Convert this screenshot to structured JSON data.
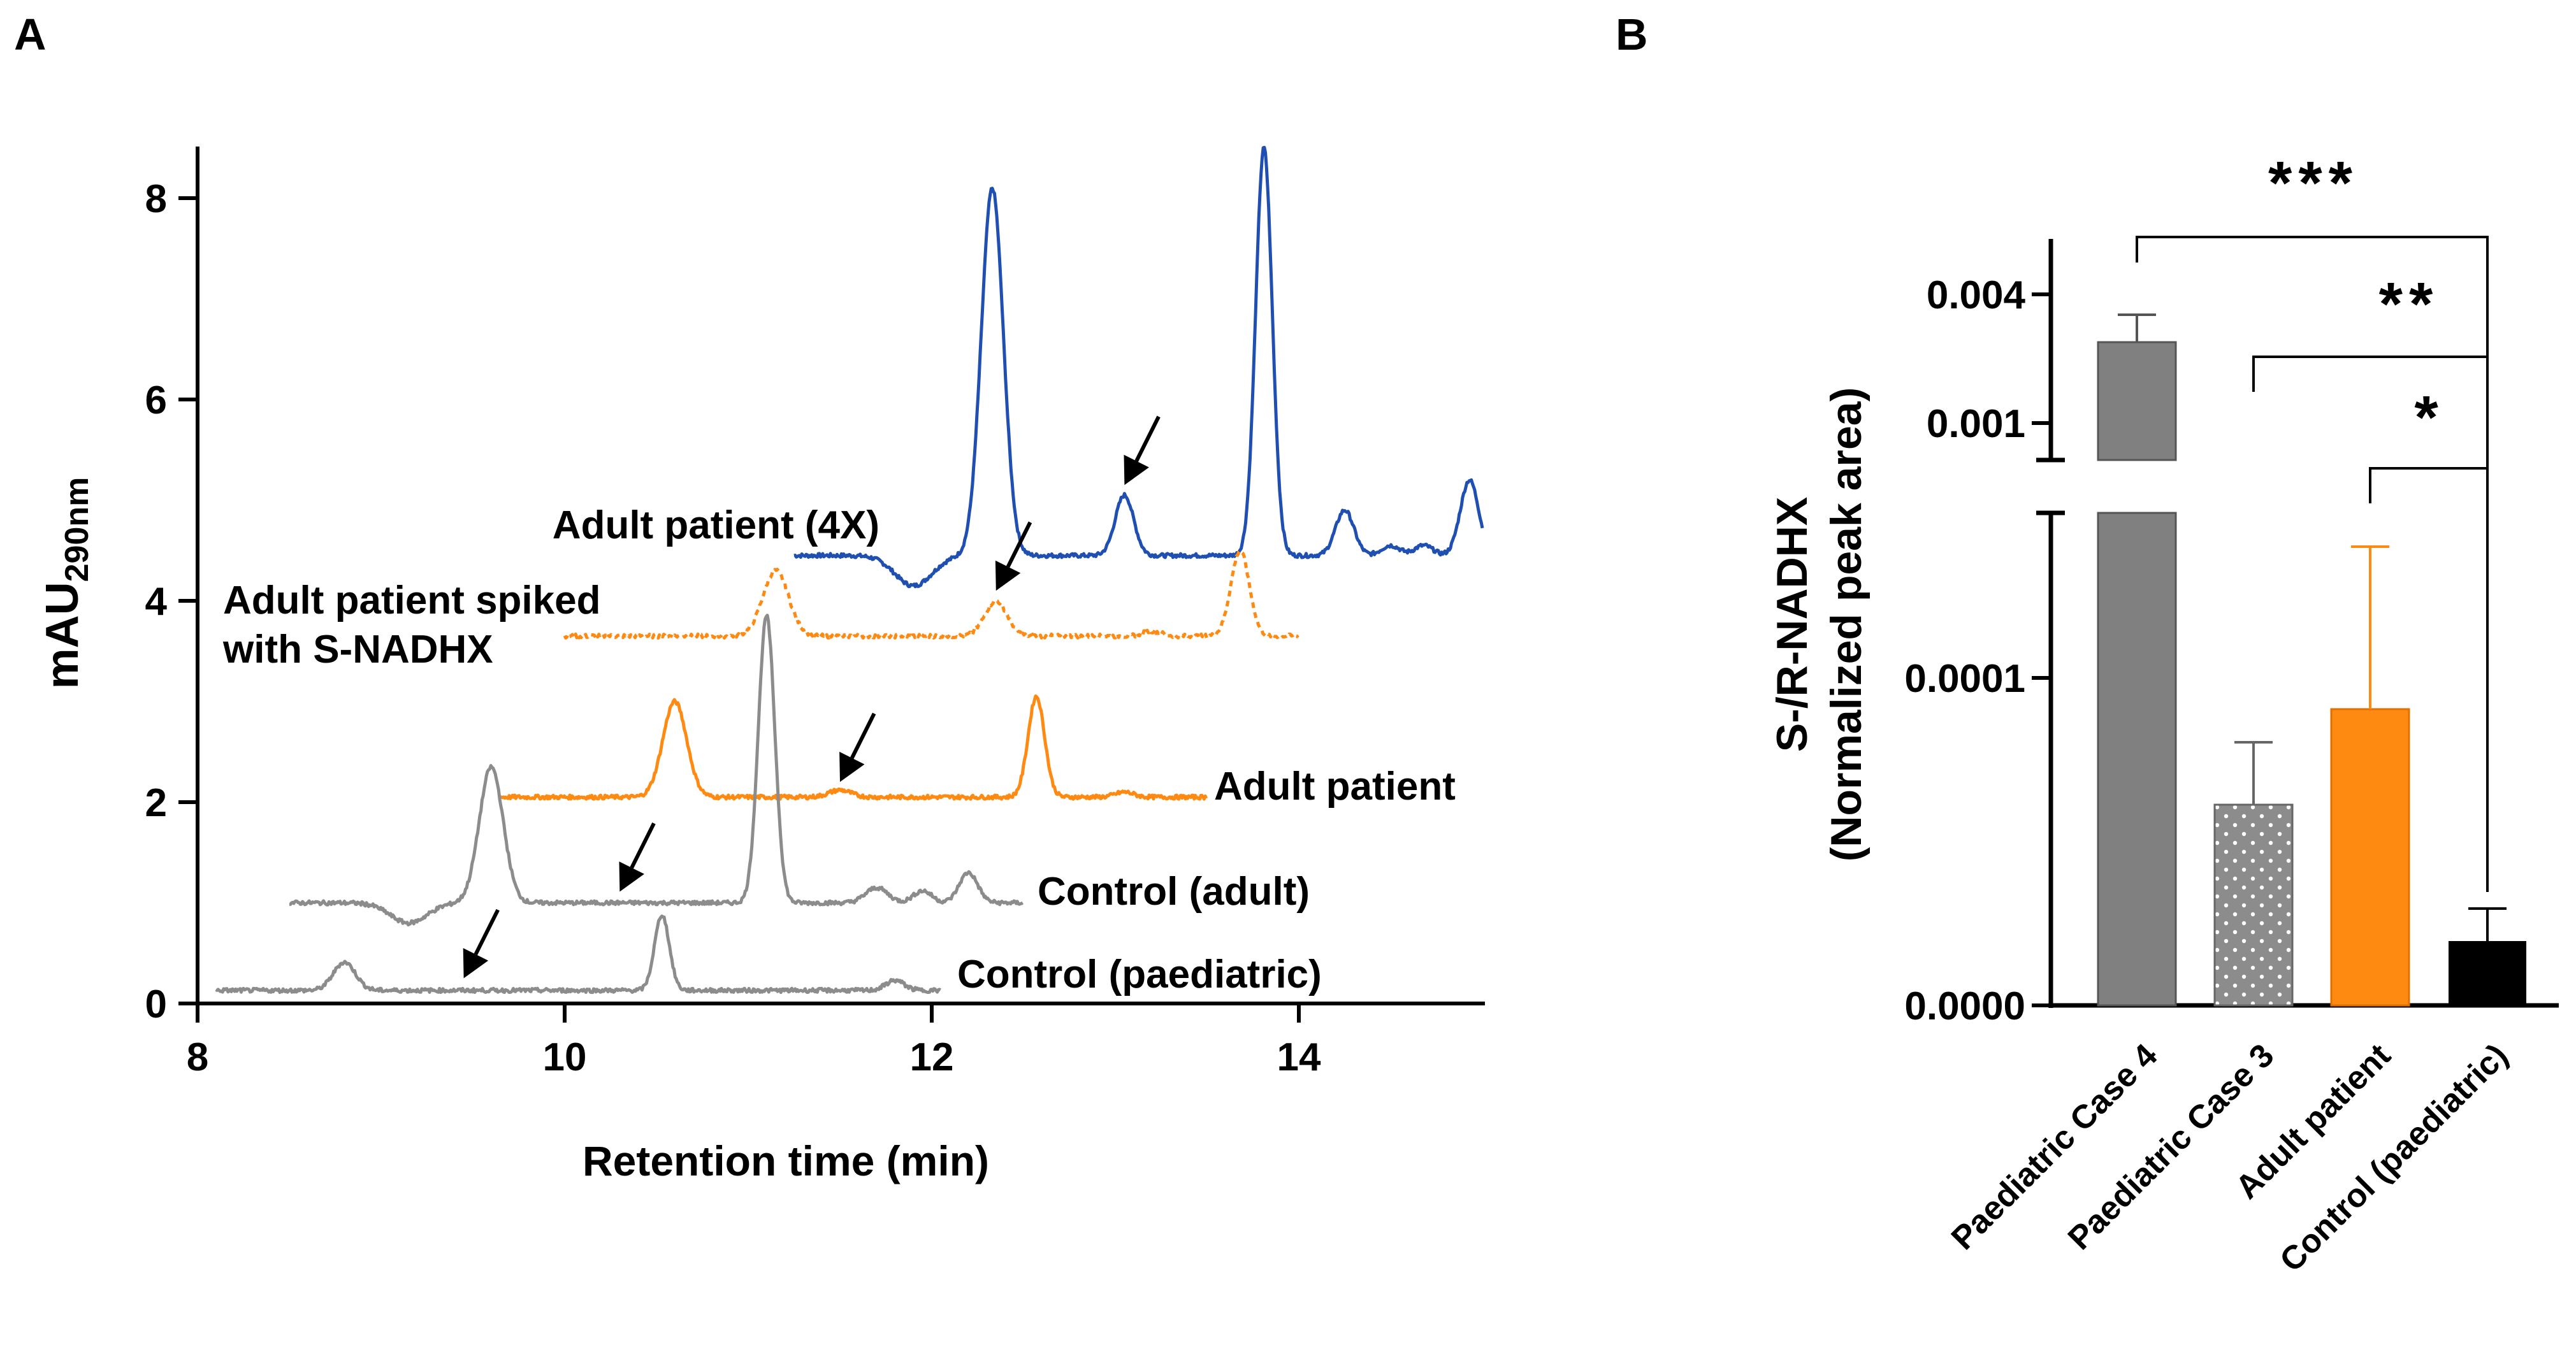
{
  "panel_labels": {
    "a": "A",
    "b": "B"
  },
  "chart_data": [
    {
      "type": "line",
      "panel": "A",
      "ylabel_main": "mAU",
      "ylabel_sub": "290nm",
      "xlabel": "Retention time (min)",
      "xlim": [
        8,
        15
      ],
      "ylim": [
        0,
        8.5
      ],
      "xticks": [
        "8",
        "10",
        "12",
        "14"
      ],
      "yticks": [
        "0",
        "2",
        "4",
        "6",
        "8"
      ],
      "colors": {
        "blue": "#1f4fb0",
        "orange": "#ff8a12",
        "gray": "#8c8c8c"
      },
      "series": [
        {
          "name": "Adult patient (4X)",
          "label": "Adult patient (4X)",
          "baseline": 4.45,
          "range": [
            11.25,
            15.0
          ],
          "peaks": [
            [
              12.33,
              3.65,
              0.06
            ],
            [
              13.05,
              0.6,
              0.05
            ],
            [
              13.81,
              4.05,
              0.045
            ],
            [
              14.25,
              0.45,
              0.05
            ],
            [
              14.93,
              0.75,
              0.05
            ],
            [
              14.5,
              0.1,
              0.05
            ],
            [
              14.68,
              0.1,
              0.05
            ]
          ],
          "dips": [
            [
              11.9,
              0.3,
              0.1
            ]
          ]
        },
        {
          "name": "Adult patient spiked with S-NADHX",
          "label_line1": "Adult patient spiked",
          "label_line2": "with S-NADHX",
          "baseline": 3.65,
          "range": [
            10.0,
            14.0
          ],
          "peaks": [
            [
              11.15,
              0.65,
              0.07
            ],
            [
              12.35,
              0.35,
              0.06
            ],
            [
              13.68,
              0.85,
              0.05
            ],
            [
              13.2,
              0.05,
              0.05
            ]
          ],
          "dips": []
        },
        {
          "name": "Adult patient",
          "label": "Adult patient",
          "baseline": 2.05,
          "range": [
            9.65,
            13.5
          ],
          "peaks": [
            [
              10.6,
              0.95,
              0.065
            ],
            [
              11.5,
              0.07,
              0.06
            ],
            [
              12.57,
              1.0,
              0.045
            ],
            [
              13.05,
              0.05,
              0.05
            ]
          ],
          "dips": []
        },
        {
          "name": "Control (adult)",
          "label": "Control (adult)",
          "baseline": 1.0,
          "range": [
            8.5,
            12.5
          ],
          "peaks": [
            [
              9.6,
              1.35,
              0.065
            ],
            [
              11.1,
              2.85,
              0.045
            ],
            [
              11.7,
              0.15,
              0.06
            ],
            [
              12.2,
              0.3,
              0.05
            ],
            [
              11.95,
              0.12,
              0.05
            ]
          ],
          "dips": [
            [
              9.15,
              0.2,
              0.1
            ]
          ]
        },
        {
          "name": "Control (paediatric)",
          "label": "Control (paediatric)",
          "baseline": 0.13,
          "range": [
            8.1,
            12.05
          ],
          "peaks": [
            [
              8.8,
              0.28,
              0.06
            ],
            [
              10.53,
              0.75,
              0.04
            ],
            [
              11.8,
              0.1,
              0.05
            ]
          ],
          "dips": []
        }
      ],
      "arrows": [
        {
          "target": "Adult patient (4X)",
          "x": 13.05,
          "y": 5.1
        },
        {
          "target": "Adult patient spiked with S-NADHX",
          "x": 12.35,
          "y": 4.05
        },
        {
          "target": "Adult patient",
          "x": 11.5,
          "y": 2.15
        },
        {
          "target": "Control (adult)",
          "x": 10.3,
          "y": 1.06
        },
        {
          "target": "Control (paediatric)",
          "x": 9.45,
          "y": 0.2
        }
      ]
    },
    {
      "type": "bar",
      "panel": "B",
      "ylabel_line1": "S-/R-NADHX",
      "ylabel_line2": "(Normalized peak area)",
      "categories": [
        "Paediatric Case 4",
        "Paediatric Case 3",
        "Adult patient",
        "Control (paediatric)"
      ],
      "values": [
        0.0025,
        6e-05,
        9e-05,
        2e-05
      ],
      "errors": [
        0.0009,
        2e-05,
        5e-05,
        1e-05
      ],
      "value_note": "y axis is broken: lower segment 0.0000-0.00015 (linear), upper segment 0.001-0.004",
      "yticks_lower": [
        "0.0000",
        "0.0001"
      ],
      "yticks_upper": [
        "0.001",
        "0.004"
      ],
      "bar_colors": [
        "#808080",
        "#8c8c8c",
        "#ff8a12",
        "#000000"
      ],
      "bar_patterns": [
        "solid",
        "dotted",
        "solid",
        "solid"
      ],
      "significance": [
        {
          "compare": "Paediatric Case 4 vs Control (paediatric)",
          "label": "***"
        },
        {
          "compare": "Paediatric Case 3 vs Control (paediatric)",
          "label": "**"
        },
        {
          "compare": "Adult patient vs Control (paediatric)",
          "label": "*"
        }
      ]
    }
  ]
}
